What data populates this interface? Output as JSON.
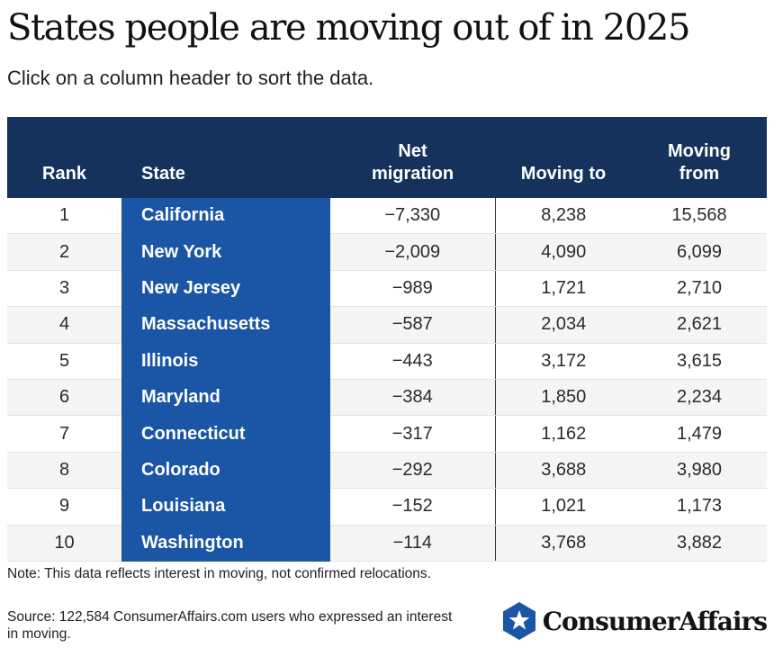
{
  "header": {
    "title": "States people are moving out of in 2025",
    "subtitle": "Click on a column header to sort the data."
  },
  "chart_data": {
    "type": "table",
    "columns": [
      "Rank",
      "State",
      "Net migration",
      "Moving to",
      "Moving from"
    ],
    "rows": [
      {
        "rank": "1",
        "state": "California",
        "net": "−7,330",
        "to": "8,238",
        "from": "15,568"
      },
      {
        "rank": "2",
        "state": "New York",
        "net": "−2,009",
        "to": "4,090",
        "from": "6,099"
      },
      {
        "rank": "3",
        "state": "New Jersey",
        "net": "−989",
        "to": "1,721",
        "from": "2,710"
      },
      {
        "rank": "4",
        "state": "Massachusetts",
        "net": "−587",
        "to": "2,034",
        "from": "2,621"
      },
      {
        "rank": "5",
        "state": "Illinois",
        "net": "−443",
        "to": "3,172",
        "from": "3,615"
      },
      {
        "rank": "6",
        "state": "Maryland",
        "net": "−384",
        "to": "1,850",
        "from": "2,234"
      },
      {
        "rank": "7",
        "state": "Connecticut",
        "net": "−317",
        "to": "1,162",
        "from": "1,479"
      },
      {
        "rank": "8",
        "state": "Colorado",
        "net": "−292",
        "to": "3,688",
        "from": "3,980"
      },
      {
        "rank": "9",
        "state": "Louisiana",
        "net": "−152",
        "to": "1,021",
        "from": "1,173"
      },
      {
        "rank": "10",
        "state": "Washington",
        "net": "−114",
        "to": "3,768",
        "from": "3,882"
      }
    ]
  },
  "footer": {
    "note": "Note: This data reflects interest in moving, not confirmed relocations.",
    "source": "Source: 122,584 ConsumerAffairs.com users who expressed an interest in moving.",
    "logo_text": "ConsumerAffairs",
    "logo_icon": "star-shield-icon"
  },
  "colors": {
    "header_bg": "#14325c",
    "state_col_bg": "#1a55a6",
    "logo_blue": "#1a55a6"
  }
}
